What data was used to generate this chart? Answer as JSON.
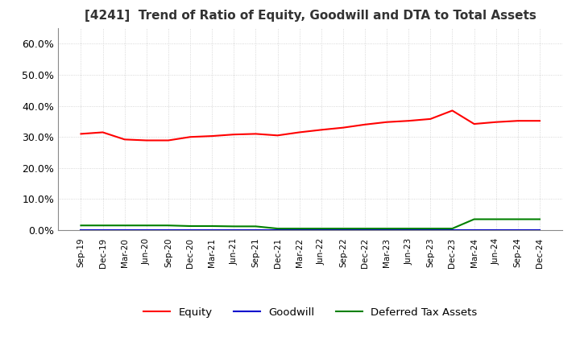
{
  "title": "[4241]  Trend of Ratio of Equity, Goodwill and DTA to Total Assets",
  "title_fontsize": 11,
  "background_color": "#ffffff",
  "grid_color": "#cccccc",
  "ylim": [
    0.0,
    0.65
  ],
  "yticks": [
    0.0,
    0.1,
    0.2,
    0.3,
    0.4,
    0.5,
    0.6
  ],
  "x_labels": [
    "Sep-19",
    "Dec-19",
    "Mar-20",
    "Jun-20",
    "Sep-20",
    "Dec-20",
    "Mar-21",
    "Jun-21",
    "Sep-21",
    "Dec-21",
    "Mar-22",
    "Jun-22",
    "Sep-22",
    "Dec-22",
    "Mar-23",
    "Jun-23",
    "Sep-23",
    "Dec-23",
    "Mar-24",
    "Jun-24",
    "Sep-24",
    "Dec-24"
  ],
  "equity": [
    0.31,
    0.315,
    0.292,
    0.289,
    0.289,
    0.3,
    0.303,
    0.308,
    0.31,
    0.305,
    0.315,
    0.323,
    0.33,
    0.34,
    0.348,
    0.352,
    0.358,
    0.385,
    0.342,
    0.348,
    0.352,
    0.352
  ],
  "goodwill": [
    0.001,
    0.001,
    0.001,
    0.001,
    0.001,
    0.001,
    0.001,
    0.001,
    0.001,
    0.001,
    0.001,
    0.001,
    0.001,
    0.001,
    0.001,
    0.001,
    0.001,
    0.001,
    0.001,
    0.001,
    0.001,
    0.001
  ],
  "dta": [
    0.015,
    0.015,
    0.015,
    0.015,
    0.015,
    0.013,
    0.013,
    0.012,
    0.012,
    0.005,
    0.005,
    0.005,
    0.005,
    0.005,
    0.005,
    0.005,
    0.005,
    0.005,
    0.035,
    0.035,
    0.035,
    0.035
  ],
  "equity_color": "#ff0000",
  "goodwill_color": "#0000cc",
  "dta_color": "#008000",
  "legend_labels": [
    "Equity",
    "Goodwill",
    "Deferred Tax Assets"
  ]
}
